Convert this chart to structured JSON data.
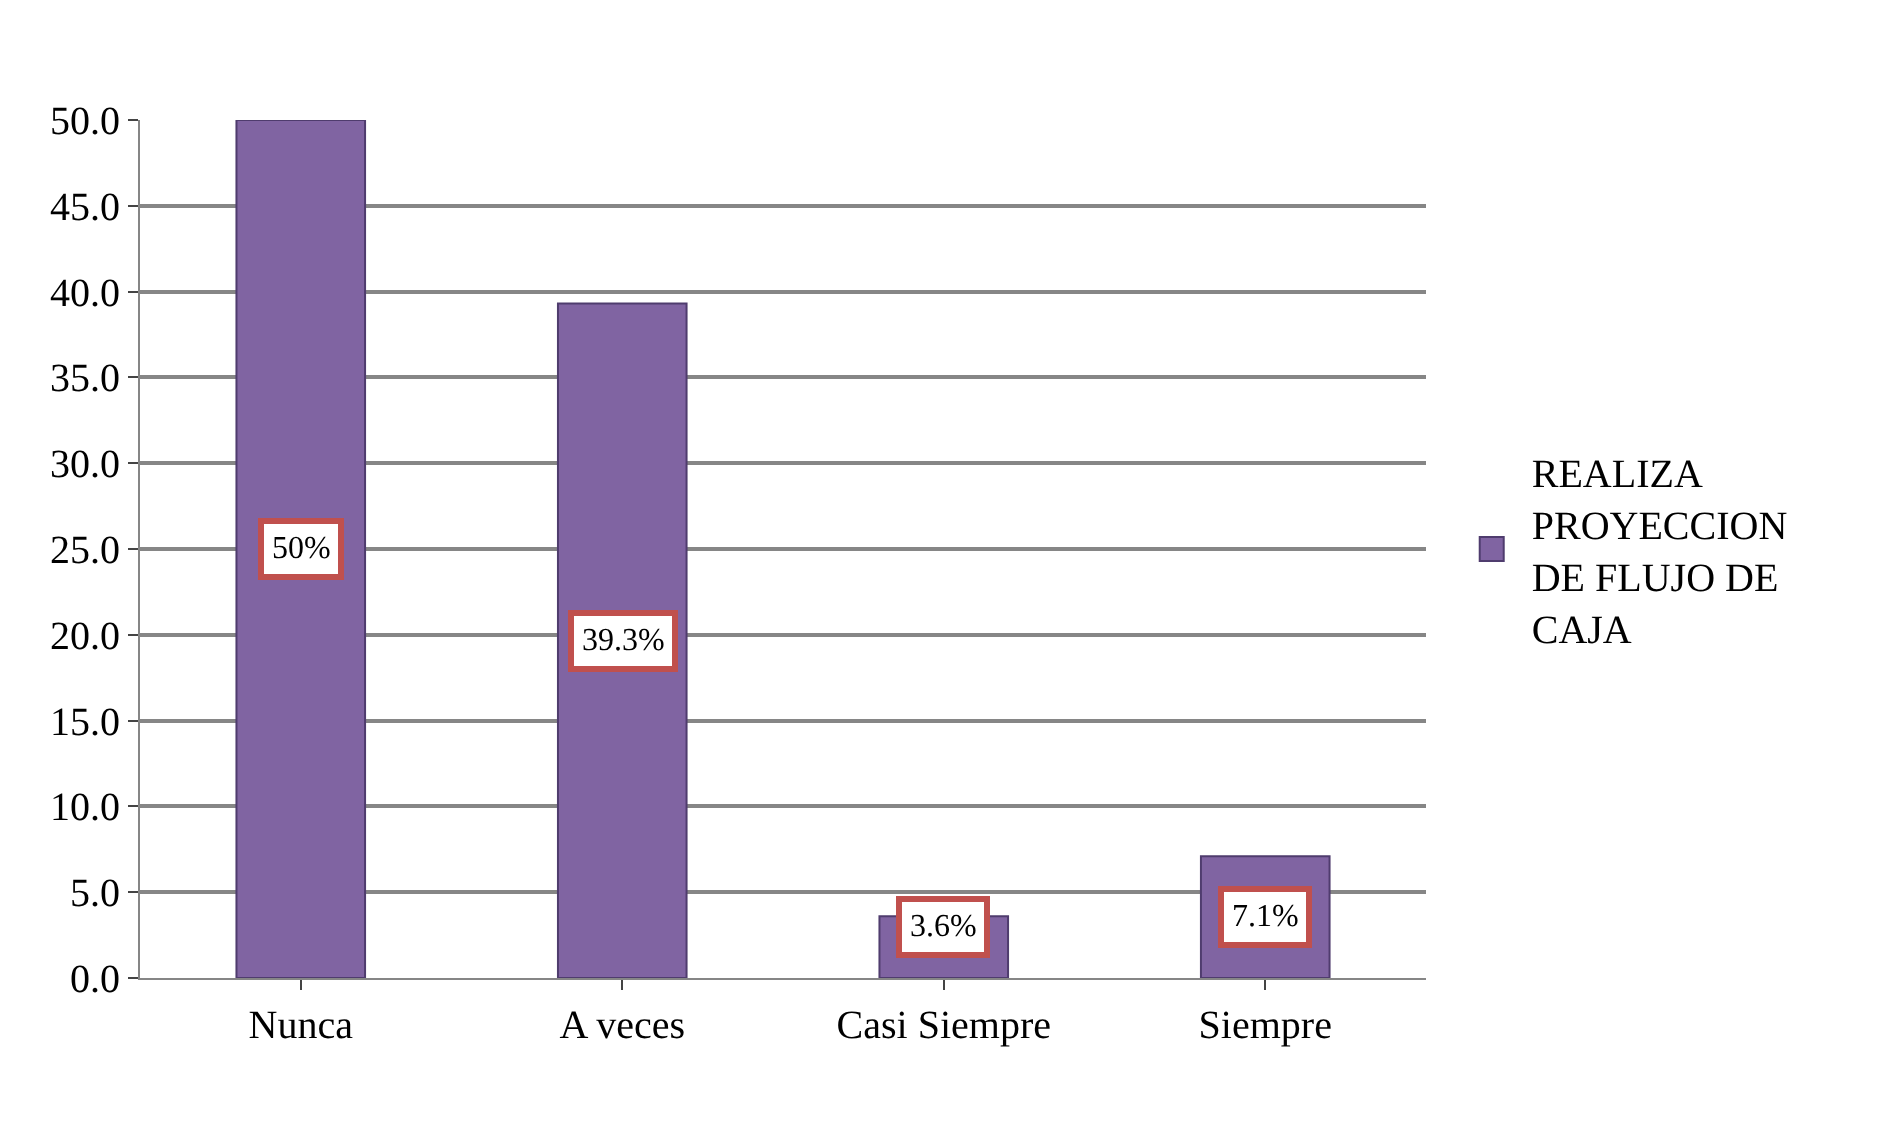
{
  "chart_data": {
    "type": "bar",
    "categories": [
      "Nunca",
      "A veces",
      "Casi Siempre",
      "Siempre"
    ],
    "series": [
      {
        "name": "REALIZA PROYECCION DE FLUJO DE CAJA",
        "color": "#8064a2",
        "values": [
          50,
          39.3,
          3.6,
          7.1
        ],
        "value_labels": [
          "50%",
          "39.3%",
          "3.6%",
          "7.1%"
        ]
      }
    ],
    "ylim": [
      0,
      50
    ],
    "yticks": [
      {
        "value": 0,
        "label": "0.0"
      },
      {
        "value": 5,
        "label": "5.0"
      },
      {
        "value": 10,
        "label": "10.0"
      },
      {
        "value": 15,
        "label": "15.0"
      },
      {
        "value": 20,
        "label": "20.0"
      },
      {
        "value": 25,
        "label": "25.0"
      },
      {
        "value": 30,
        "label": "30.0"
      },
      {
        "value": 35,
        "label": "35.0"
      },
      {
        "value": 40,
        "label": "40.0"
      },
      {
        "value": 45,
        "label": "45.0"
      },
      {
        "value": 50,
        "label": "50.0"
      }
    ],
    "grid": "y",
    "legend": "right"
  }
}
